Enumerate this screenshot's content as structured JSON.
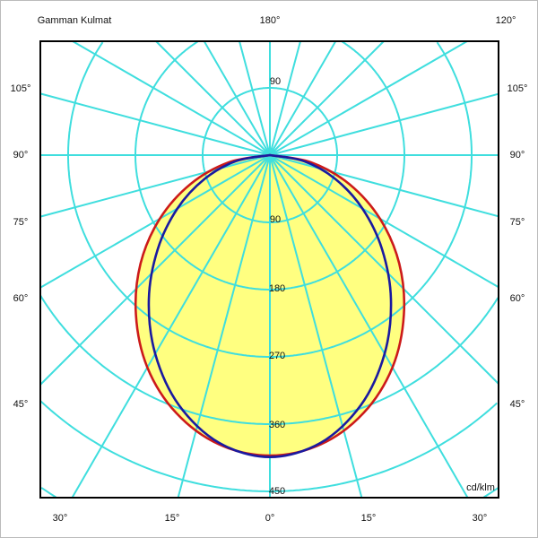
{
  "chart_data": {
    "type": "polar",
    "title": "Gamman Kulmat",
    "unit": "cd/klm",
    "radial_ticks": [
      90,
      180,
      270,
      360,
      450
    ],
    "angle_labels": {
      "top": [
        "180°",
        "120°"
      ],
      "left": [
        "105°",
        "90°",
        "75°",
        "60°",
        "45°"
      ],
      "right": [
        "105°",
        "90°",
        "75°",
        "60°",
        "45°"
      ],
      "bottom": [
        "30°",
        "15°",
        "0°",
        "15°",
        "30°"
      ]
    },
    "grid": true,
    "angles_deg": [
      0,
      10,
      20,
      30,
      40,
      50,
      60,
      70,
      80,
      90
    ],
    "series": [
      {
        "values": [
          402,
          393,
          367,
          328,
          279,
          226,
          170,
          113,
          56,
          0
        ],
        "color": "#cc1a1a"
      },
      {
        "values": [
          404,
          391,
          356,
          307,
          252,
          196,
          143,
          93,
          46,
          0
        ],
        "color": "#1a1aa0"
      }
    ],
    "colors": {
      "grid": "#3fdede",
      "fill": "#ffff80",
      "frame": "#000000"
    }
  }
}
